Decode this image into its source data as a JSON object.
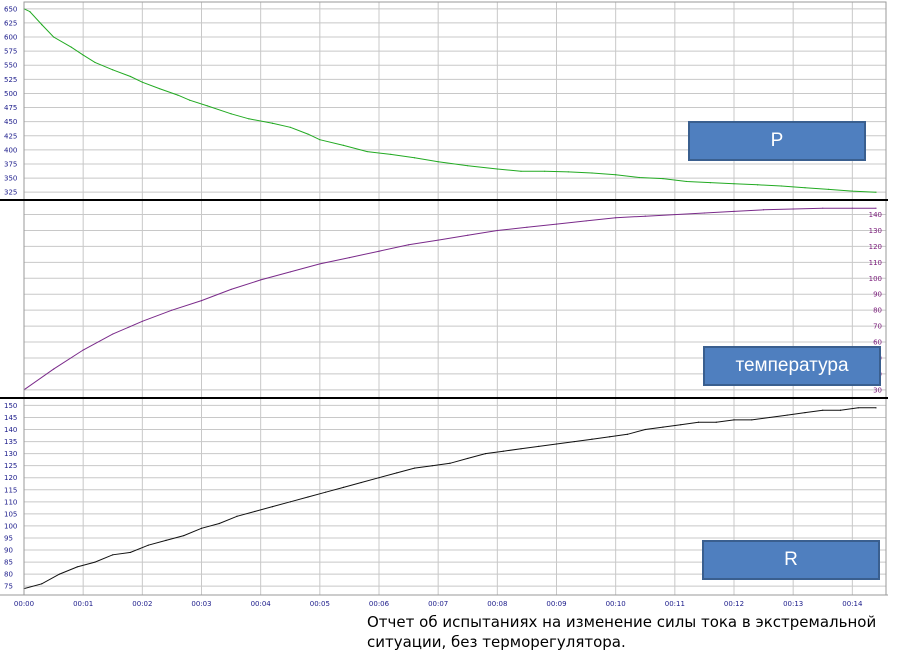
{
  "caption": "Отчет об испытаниях на изменение силы тока в экстремальной ситуации, без терморегулятора.",
  "colors": {
    "grid": "#c8c8c8",
    "axis_text": "#1a1a8a",
    "temp_text": "#7a1a7a",
    "p_line": "#22aa22",
    "temp_line": "#7a2a8a",
    "r_line": "#111111",
    "box_fill": "#4f7fbf",
    "box_border": "#3a5f8f"
  },
  "chart_data": [
    {
      "type": "line",
      "name": "P",
      "label": "P",
      "x_ticks": [
        "00:00",
        "00:01",
        "00:02",
        "00:03",
        "00:04",
        "00:05",
        "00:06",
        "00:07",
        "00:08",
        "00:09",
        "00:10",
        "00:11",
        "00:12",
        "00:13",
        "00:14"
      ],
      "yticks": [
        325,
        350,
        375,
        400,
        425,
        450,
        475,
        500,
        525,
        550,
        575,
        600,
        625,
        650
      ],
      "ylim": [
        320,
        655
      ],
      "xlim": [
        0,
        14.4
      ],
      "axis_side": "left",
      "grid": true,
      "x": [
        0,
        0.1,
        0.3,
        0.5,
        0.8,
        1,
        1.2,
        1.5,
        1.8,
        2,
        2.3,
        2.6,
        2.8,
        3.1,
        3.5,
        3.8,
        4.2,
        4.5,
        4.8,
        5,
        5.4,
        5.8,
        6.2,
        6.6,
        7,
        7.5,
        8,
        8.4,
        8.8,
        9.2,
        9.6,
        10,
        10.4,
        10.8,
        11.2,
        11.6,
        12,
        12.4,
        12.8,
        13.2,
        13.6,
        14,
        14.4
      ],
      "y": [
        650,
        645,
        622,
        600,
        582,
        568,
        555,
        542,
        530,
        520,
        508,
        497,
        488,
        478,
        464,
        455,
        447,
        440,
        428,
        418,
        408,
        397,
        392,
        386,
        379,
        372,
        366,
        362,
        362,
        361,
        359,
        356,
        351,
        349,
        344,
        342,
        340,
        338,
        336,
        333,
        330,
        327,
        325
      ]
    },
    {
      "type": "line",
      "name": "температура",
      "label": "температура",
      "yticks": [
        30,
        40,
        50,
        60,
        70,
        80,
        90,
        100,
        110,
        120,
        130,
        140
      ],
      "ylim": [
        28,
        146
      ],
      "xlim": [
        0,
        14.4
      ],
      "axis_side": "right",
      "grid": true,
      "x": [
        0,
        0.5,
        1,
        1.5,
        2,
        2.5,
        3,
        3.5,
        4,
        4.5,
        5,
        5.5,
        6,
        6.5,
        7,
        7.5,
        8,
        8.5,
        9,
        9.5,
        10,
        10.5,
        11,
        11.5,
        12,
        12.5,
        13,
        13.5,
        14,
        14.4
      ],
      "y": [
        30,
        43,
        55,
        65,
        73,
        80,
        86,
        93,
        99,
        104,
        109,
        113,
        117,
        121,
        124,
        127,
        130,
        132,
        134,
        136,
        138,
        139,
        140,
        141,
        142,
        143,
        143.5,
        144,
        144,
        144
      ]
    },
    {
      "type": "line",
      "name": "R",
      "label": "R",
      "yticks": [
        75,
        80,
        85,
        90,
        95,
        100,
        105,
        110,
        115,
        120,
        125,
        130,
        135,
        140,
        145,
        150
      ],
      "ylim": [
        73,
        151
      ],
      "xlim": [
        0,
        14.4
      ],
      "axis_side": "left",
      "grid": true,
      "x": [
        0,
        0.3,
        0.6,
        0.9,
        1.2,
        1.5,
        1.8,
        2.1,
        2.4,
        2.7,
        3,
        3.3,
        3.6,
        3.9,
        4.2,
        4.5,
        4.8,
        5.1,
        5.4,
        5.7,
        6,
        6.3,
        6.6,
        6.9,
        7.2,
        7.5,
        7.8,
        8.1,
        8.4,
        8.7,
        9,
        9.3,
        9.6,
        9.9,
        10.2,
        10.5,
        10.8,
        11.1,
        11.4,
        11.7,
        12,
        12.3,
        12.6,
        12.9,
        13.2,
        13.5,
        13.8,
        14.1,
        14.4
      ],
      "y": [
        74,
        76,
        80,
        83,
        85,
        88,
        89,
        92,
        94,
        96,
        99,
        101,
        104,
        106,
        108,
        110,
        112,
        114,
        116,
        118,
        120,
        122,
        124,
        125,
        126,
        128,
        130,
        131,
        132,
        133,
        134,
        135,
        136,
        137,
        138,
        140,
        141,
        142,
        143,
        143,
        144,
        144,
        145,
        146,
        147,
        148,
        148,
        149,
        149
      ]
    }
  ]
}
